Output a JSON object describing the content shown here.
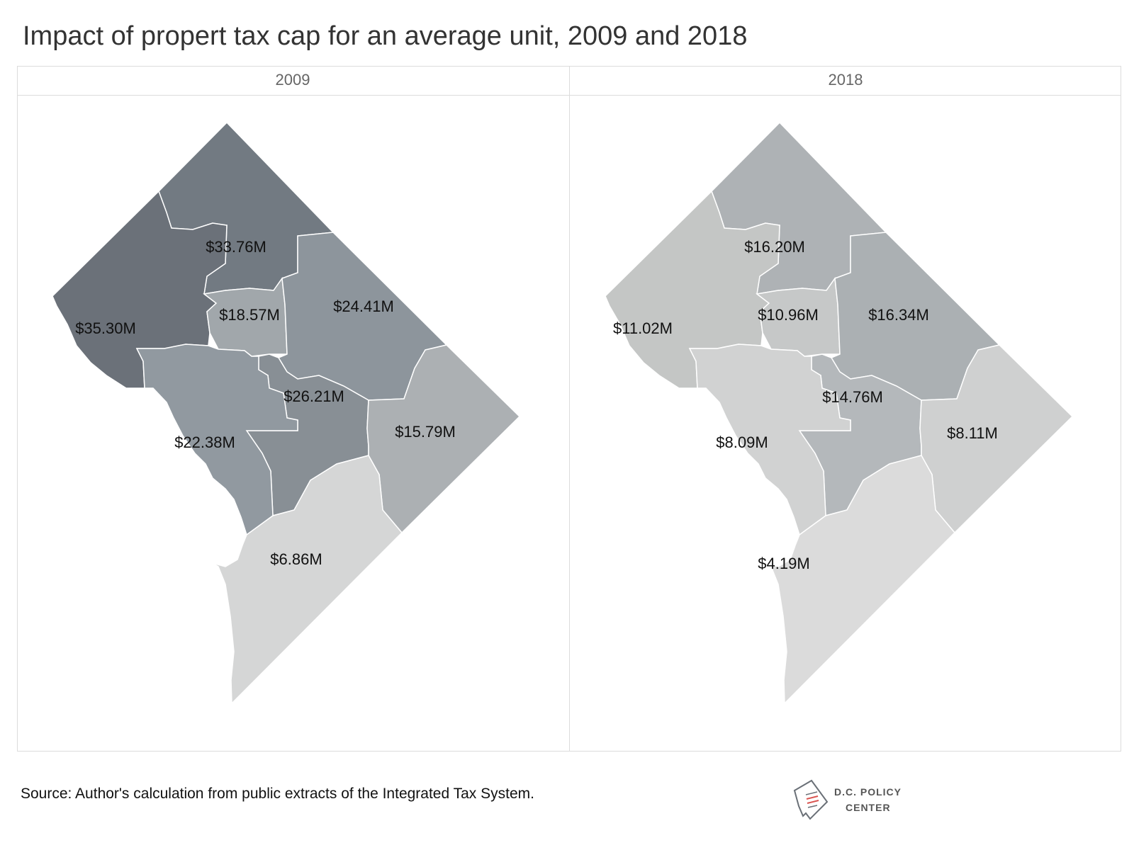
{
  "title": "Impact of propert tax cap for an average unit, 2009 and 2018",
  "map_data": {
    "type": "choropleth",
    "panels": [
      {
        "label": "2009",
        "regions": [
          {
            "id": "upper-nw",
            "value_label": "$33.76M",
            "color": "#727a82"
          },
          {
            "id": "far-west",
            "value_label": "$35.30M",
            "color": "#6b7179"
          },
          {
            "id": "inner-nw",
            "value_label": "$18.57M",
            "color": "#a1a7ab"
          },
          {
            "id": "ne-upper",
            "value_label": "$24.41M",
            "color": "#8d959c"
          },
          {
            "id": "center",
            "value_label": "$26.21M",
            "color": "#888f95"
          },
          {
            "id": "sw-central",
            "value_label": "$22.38M",
            "color": "#9199a0"
          },
          {
            "id": "east",
            "value_label": "$15.79M",
            "color": "#acb0b3"
          },
          {
            "id": "southeast",
            "value_label": "$6.86M",
            "color": "#d5d6d6"
          }
        ]
      },
      {
        "label": "2018",
        "regions": [
          {
            "id": "upper-nw",
            "value_label": "$16.20M",
            "color": "#aeb2b5"
          },
          {
            "id": "far-west",
            "value_label": "$11.02M",
            "color": "#c4c6c5"
          },
          {
            "id": "inner-nw",
            "value_label": "$10.96M",
            "color": "#c6c8c8"
          },
          {
            "id": "ne-upper",
            "value_label": "$16.34M",
            "color": "#abb0b3"
          },
          {
            "id": "center",
            "value_label": "$14.76M",
            "color": "#b4b8bb"
          },
          {
            "id": "sw-central",
            "value_label": "$8.09M",
            "color": "#d1d2d2"
          },
          {
            "id": "east",
            "value_label": "$8.11M",
            "color": "#cfd0d0"
          },
          {
            "id": "southeast",
            "value_label": "$4.19M",
            "color": "#dbdbdb"
          }
        ]
      }
    ]
  },
  "source": "Source: Author's calculation from public extracts of the Integrated Tax System.",
  "logo": {
    "line1": "D.C. POLICY",
    "line2": "CENTER",
    "accent": "#d9534f"
  }
}
